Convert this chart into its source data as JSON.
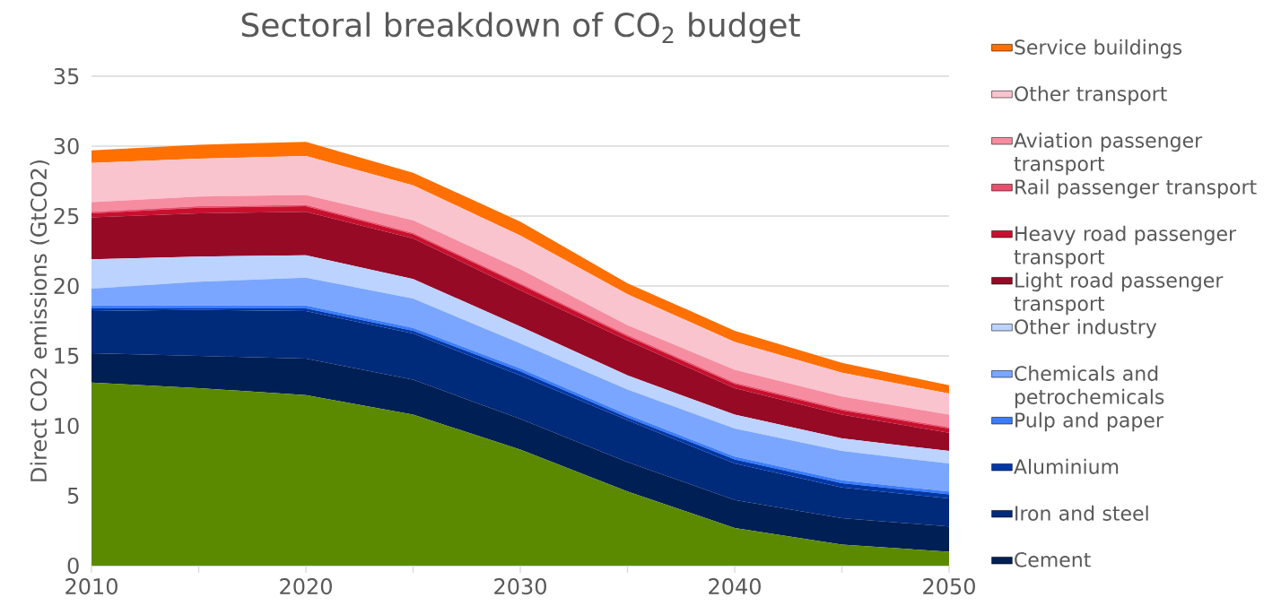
{
  "chart_data": {
    "type": "area",
    "stacked": true,
    "title": "Sectoral breakdown of CO$_{2}$ budget",
    "ylabel": "Direct CO2 emissions (GtCO2)",
    "x": [
      2010,
      2015,
      2020,
      2025,
      2030,
      2035,
      2040,
      2045,
      2050
    ],
    "xlim": [
      2010,
      2050
    ],
    "xticks": [
      2010,
      {
        "value": 2015,
        "label": null
      },
      2020,
      {
        "value": 2025,
        "label": null
      },
      2030,
      {
        "value": 2035,
        "label": null
      },
      2040,
      {
        "value": 2045,
        "label": null
      },
      2050
    ],
    "ylim": [
      0,
      35
    ],
    "yticks": [
      0,
      5,
      10,
      15,
      20,
      25,
      30,
      35
    ],
    "grid": "y",
    "legend": "right",
    "series": [
      {
        "color": "#5b8a00",
        "values": [
          13.1,
          12.7,
          12.2,
          10.8,
          8.3,
          5.3,
          2.7,
          1.5,
          1.0
        ]
      },
      {
        "name": "Cement",
        "color": "#001f54",
        "values": [
          2.1,
          2.3,
          2.6,
          2.5,
          2.2,
          2.1,
          2.0,
          1.9,
          1.8
        ]
      },
      {
        "name": "Iron and steel",
        "color": "#002a7a",
        "values": [
          3.0,
          3.3,
          3.4,
          3.3,
          3.1,
          3.0,
          2.6,
          2.2,
          2.0
        ]
      },
      {
        "name": "Aluminium",
        "color": "#0038a8",
        "values": [
          0.2,
          0.1,
          0.2,
          0.2,
          0.3,
          0.2,
          0.3,
          0.3,
          0.3
        ]
      },
      {
        "name": "Pulp and paper",
        "color": "#3a7dff",
        "values": [
          0.2,
          0.2,
          0.2,
          0.2,
          0.2,
          0.2,
          0.2,
          0.2,
          0.2
        ]
      },
      {
        "name": "Chemicals and petrochemicals",
        "color": "#7aa6ff",
        "values": [
          1.2,
          1.7,
          2.0,
          2.1,
          1.8,
          1.8,
          2.0,
          2.1,
          2.0
        ]
      },
      {
        "name": "Other industry",
        "color": "#bcd3ff",
        "values": [
          2.1,
          1.8,
          1.6,
          1.4,
          1.2,
          1.0,
          1.0,
          0.9,
          0.9
        ]
      },
      {
        "name": "Light road passenger transport",
        "color": "#960a26",
        "values": [
          3.0,
          3.1,
          3.1,
          2.9,
          2.6,
          2.5,
          1.9,
          1.7,
          1.3
        ]
      },
      {
        "name": "Heavy road passenger transport",
        "color": "#c8102e",
        "values": [
          0.3,
          0.4,
          0.4,
          0.3,
          0.4,
          0.3,
          0.3,
          0.3,
          0.3
        ]
      },
      {
        "name": "Rail passenger transport",
        "color": "#e8506e",
        "values": [
          0.1,
          0.1,
          0.1,
          0.1,
          0.1,
          0.1,
          0.1,
          0.1,
          0.1
        ]
      },
      {
        "name": "Aviation passenger transport",
        "color": "#f68ca0",
        "values": [
          0.7,
          0.7,
          0.7,
          0.9,
          1.0,
          0.7,
          0.9,
          0.9,
          0.9
        ]
      },
      {
        "name": "Other transport",
        "color": "#fac4cf",
        "values": [
          2.8,
          2.7,
          2.8,
          2.5,
          2.4,
          2.2,
          2.0,
          1.7,
          1.5
        ]
      },
      {
        "name": "Service buildings",
        "color": "#ff7000",
        "values": [
          0.9,
          1.0,
          1.0,
          0.9,
          1.0,
          0.8,
          0.8,
          0.7,
          0.6
        ]
      }
    ]
  }
}
